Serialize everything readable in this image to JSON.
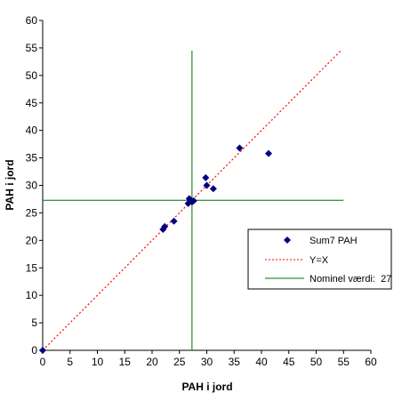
{
  "chart_data": {
    "type": "scatter",
    "xlabel": "PAH i jord",
    "ylabel": "PAH i jord",
    "xlim": [
      0,
      60
    ],
    "ylim": [
      0,
      60
    ],
    "xticks": [
      "0",
      "5",
      "10",
      "15",
      "20",
      "25",
      "30",
      "35",
      "40",
      "45",
      "50",
      "55",
      "60"
    ],
    "yticks": [
      "0",
      "5",
      "10",
      "15",
      "20",
      "25",
      "30",
      "35",
      "40",
      "45",
      "50",
      "55",
      "60"
    ],
    "grid": false,
    "legend_position": "right",
    "series": [
      {
        "name": "Sum7 PAH",
        "kind": "scatter",
        "marker": "diamond",
        "color": "#000080",
        "points": [
          [
            0,
            0
          ],
          [
            22,
            22
          ],
          [
            22.3,
            22.5
          ],
          [
            24,
            23.5
          ],
          [
            26.6,
            26.7
          ],
          [
            26.8,
            27.6
          ],
          [
            27.3,
            27.0
          ],
          [
            27.6,
            27.2
          ],
          [
            29.8,
            31.4
          ],
          [
            30.0,
            30.0
          ],
          [
            31.2,
            29.4
          ],
          [
            36.0,
            36.8
          ],
          [
            41.3,
            35.8
          ]
        ]
      },
      {
        "name": "Y=X",
        "kind": "line",
        "style": "dotted",
        "color": "#ff0000",
        "points": [
          [
            0,
            0
          ],
          [
            54.5,
            54.5
          ]
        ]
      },
      {
        "name": "Nominel værdi:  27",
        "kind": "crosshair",
        "color": "#007000",
        "value": 27.3,
        "extent": [
          0,
          54.5
        ]
      }
    ]
  }
}
